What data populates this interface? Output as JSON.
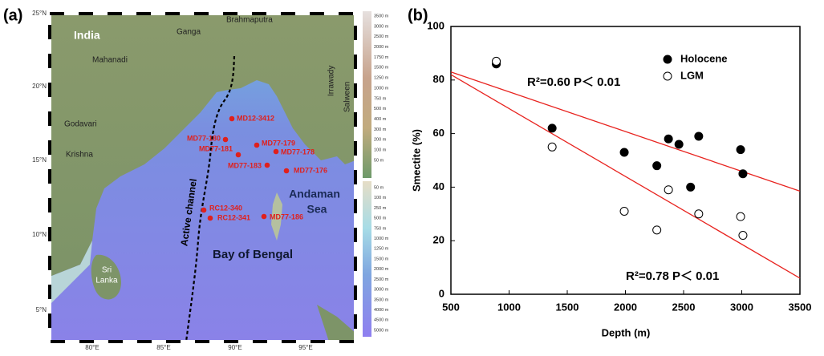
{
  "map": {
    "panel_label": "(a)",
    "lat_ticks": [
      "25°N",
      "20°N",
      "15°N",
      "10°N",
      "5°N"
    ],
    "lon_ticks": [
      "80°E",
      "85°E",
      "90°E",
      "95°E"
    ],
    "place_labels": [
      "India",
      "Ganga",
      "Brahmaputra",
      "Mahanadi",
      "Godavari",
      "Krishna",
      "Irrawady",
      "Salween",
      "Sri",
      "Lanka",
      "Andaman",
      "Sea",
      "Bay of Bengal",
      "Active channel"
    ],
    "stations": [
      "MD12-3412",
      "MD77-180",
      "MD77-181",
      "MD77-179",
      "MD77-178",
      "MD77-183",
      "MD77-176",
      "RC12-340",
      "RC12-341",
      "MD77-186"
    ],
    "colorbar_land": [
      "3500 m",
      "3000 m",
      "2500 m",
      "2000 m",
      "1750 m",
      "1500 m",
      "1250 m",
      "1000 m",
      "750 m",
      "500 m",
      "400 m",
      "300 m",
      "200 m",
      "100 m",
      "50 m"
    ],
    "colorbar_sea": [
      "50 m",
      "100 m",
      "250 m",
      "500 m",
      "750 m",
      "1000 m",
      "1250 m",
      "1500 m",
      "2000 m",
      "2500 m",
      "3000 m",
      "3500 m",
      "4000 m",
      "4500 m",
      "5000 m"
    ]
  },
  "chart_data": {
    "type": "scatter",
    "panel_label": "(b)",
    "x_label": "Depth (m)",
    "y_label": "Smectite (%)",
    "xlim": [
      500,
      3500
    ],
    "ylim": [
      0,
      100
    ],
    "xticks": [
      500,
      1000,
      1500,
      2000,
      2500,
      3000,
      3500
    ],
    "yticks": [
      0,
      20,
      40,
      60,
      80,
      100
    ],
    "legend": "upper right",
    "series": [
      {
        "name": "Holocene",
        "color": "#000000",
        "filled": true,
        "x": [
          890,
          1370,
          1990,
          2270,
          2370,
          2460,
          2560,
          2630,
          2990,
          3010
        ],
        "values": [
          86,
          62,
          53,
          48,
          58,
          56,
          40,
          59,
          54,
          45
        ]
      },
      {
        "name": "LGM",
        "color": "#000000",
        "filled": false,
        "x": [
          890,
          1370,
          1990,
          2270,
          2370,
          2630,
          2990,
          3010
        ],
        "values": [
          87,
          55,
          31,
          24,
          39,
          30,
          29,
          22
        ]
      }
    ],
    "trend_lines": [
      {
        "color": "#e8231f",
        "x": [
          500,
          3500
        ],
        "values": [
          83,
          38.5
        ]
      },
      {
        "color": "#e8231f",
        "x": [
          500,
          3500
        ],
        "values": [
          82,
          6
        ]
      }
    ],
    "annotations": [
      "R²=0.60  P＜ 0.01",
      "R²=0.78  P＜ 0.01"
    ]
  }
}
